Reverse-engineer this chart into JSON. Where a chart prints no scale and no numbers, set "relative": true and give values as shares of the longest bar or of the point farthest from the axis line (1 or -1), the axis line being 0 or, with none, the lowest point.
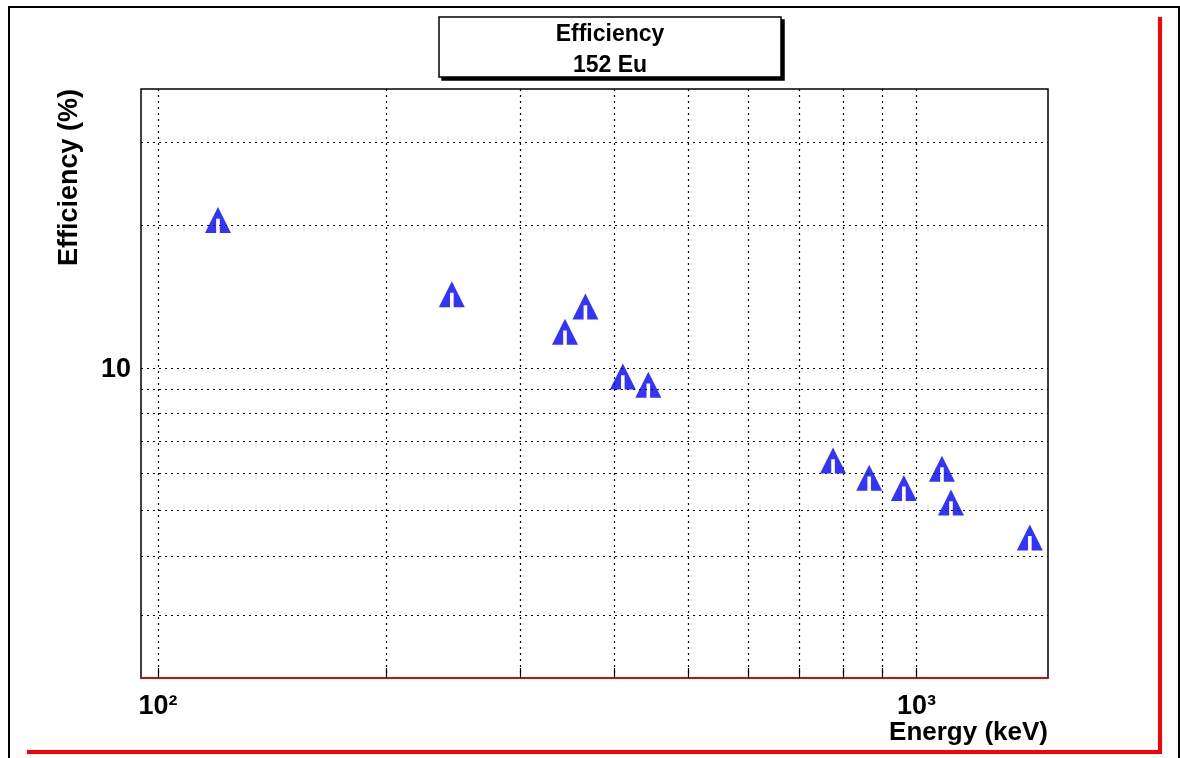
{
  "chart_data": {
    "type": "scatter",
    "title": "Efficiency",
    "subtitle": "152 Eu",
    "xlabel": "Energy (keV)",
    "ylabel": "Efficiency (%)",
    "x": [
      120,
      244,
      344,
      366,
      410,
      443,
      776,
      866,
      962,
      1080,
      1110,
      1410
    ],
    "values": [
      1,
      0.838,
      0.756,
      0.811,
      0.658,
      0.64,
      0.475,
      0.437,
      0.415,
      0.457,
      0.383,
      0.307
    ],
    "relative": true,
    "color": "#0000ff",
    "marker": "triangle",
    "log": "x",
    "grid": "x",
    "xlim": [
      95,
      1490
    ],
    "xticks": [
      {
        "value": 100,
        "label": "10²"
      },
      {
        "value": 200,
        "label": null
      },
      {
        "value": 300,
        "label": null
      },
      {
        "value": 400,
        "label": null
      },
      {
        "value": 500,
        "label": null
      },
      {
        "value": 600,
        "label": null
      },
      {
        "value": 700,
        "label": null
      },
      {
        "value": 800,
        "label": null
      },
      {
        "value": 900,
        "label": null
      },
      {
        "value": 1000,
        "label": "10³"
      }
    ],
    "ref_lines": [
      {
        "axis": "y",
        "value": 0.138,
        "color": "#000000",
        "line_style": "dotted"
      },
      {
        "axis": "y",
        "value": 0.266,
        "color": "#000000",
        "line_style": "dotted"
      },
      {
        "axis": "y",
        "value": 0.366,
        "color": "#000000",
        "line_style": "dotted"
      },
      {
        "axis": "y",
        "value": 0.448,
        "color": "#000000",
        "line_style": "dotted"
      },
      {
        "axis": "y",
        "value": 0.517,
        "color": "#000000",
        "line_style": "dotted"
      },
      {
        "axis": "y",
        "value": 0.577,
        "color": "#000000",
        "line_style": "dotted"
      },
      {
        "axis": "y",
        "value": 0.63,
        "color": "#000000",
        "line_style": "dotted"
      },
      {
        "axis": "y",
        "value": 0.677,
        "color": "#000000",
        "line_style": "dotted"
      },
      {
        "axis": "y",
        "value": 0.988,
        "color": "#000000",
        "line_style": "dotted"
      },
      {
        "axis": "y",
        "value": 1.169,
        "color": "#000000",
        "line_style": "dotted"
      }
    ],
    "annotations": [
      "10"
    ]
  }
}
